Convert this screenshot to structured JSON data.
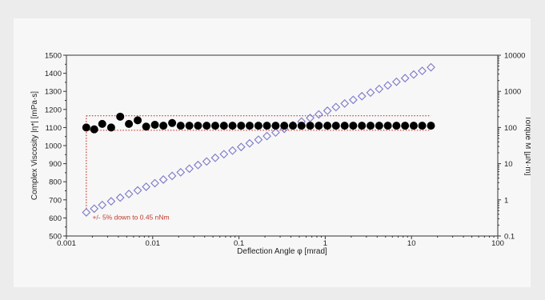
{
  "chart_data": {
    "type": "scatter",
    "title": "",
    "xlabel": "Deflection Angle φ [mrad]",
    "ylabel": "Complex Viscosity |η*| [mPa·s]",
    "y2label": "Torque M [µN·m]",
    "x_scale": "log",
    "xlim": [
      0.001,
      100
    ],
    "ylim": [
      500,
      1500
    ],
    "y2_scale": "log",
    "y2lim": [
      0.1,
      10000
    ],
    "grid": false,
    "legend": "none",
    "x_tick_labels": [
      "0.001",
      "0.01",
      "0.1",
      "1",
      "10",
      "100"
    ],
    "x_tick_values": [
      0.001,
      0.01,
      0.1,
      1,
      10,
      100
    ],
    "y_tick_labels": [
      "500",
      "600",
      "700",
      "800",
      "900",
      "1000",
      "1100",
      "1200",
      "1300",
      "1400",
      "1500"
    ],
    "y_tick_values": [
      500,
      600,
      700,
      800,
      900,
      1000,
      1100,
      1200,
      1300,
      1400,
      1500
    ],
    "y2_tick_labels": [
      "0.1",
      "1",
      "10",
      "100",
      "1000",
      "10000"
    ],
    "y2_tick_values": [
      0.1,
      1,
      10,
      100,
      1000,
      10000
    ],
    "series": [
      {
        "axis": "left",
        "marker": "filled-circle",
        "color": "#000000",
        "x": [
          0.0017,
          0.0021,
          0.0026,
          0.0033,
          0.0042,
          0.0053,
          0.0067,
          0.0084,
          0.0106,
          0.0133,
          0.0168,
          0.0211,
          0.0266,
          0.0335,
          0.0422,
          0.0531,
          0.0669,
          0.0842,
          0.106,
          0.133,
          0.168,
          0.211,
          0.266,
          0.335,
          0.422,
          0.531,
          0.669,
          0.842,
          1.06,
          1.33,
          1.68,
          2.11,
          2.66,
          3.35,
          4.22,
          5.31,
          6.69,
          8.42,
          10.6,
          13.3,
          16.8
        ],
        "y": [
          1100,
          1090,
          1120,
          1100,
          1160,
          1120,
          1140,
          1105,
          1115,
          1110,
          1125,
          1110,
          1110,
          1110,
          1110,
          1110,
          1110,
          1110,
          1110,
          1110,
          1110,
          1110,
          1110,
          1110,
          1110,
          1110,
          1110,
          1110,
          1110,
          1110,
          1110,
          1110,
          1110,
          1110,
          1110,
          1110,
          1110,
          1110,
          1110,
          1110,
          1110
        ]
      },
      {
        "axis": "right",
        "marker": "open-diamond",
        "color": "#7a78c8",
        "x": [
          0.0017,
          0.0021,
          0.0026,
          0.0033,
          0.0042,
          0.0053,
          0.0067,
          0.0084,
          0.0106,
          0.0133,
          0.0168,
          0.0211,
          0.0266,
          0.0335,
          0.0422,
          0.0531,
          0.0669,
          0.0842,
          0.106,
          0.133,
          0.168,
          0.211,
          0.266,
          0.335,
          0.422,
          0.531,
          0.669,
          0.842,
          1.06,
          1.33,
          1.68,
          2.11,
          2.66,
          3.35,
          4.22,
          5.31,
          6.69,
          8.42,
          10.6,
          13.3,
          16.8
        ],
        "y": [
          0.45,
          0.57,
          0.72,
          0.91,
          1.15,
          1.45,
          1.82,
          2.3,
          2.89,
          3.64,
          4.59,
          5.78,
          7.28,
          9.17,
          11.5,
          14.5,
          18.3,
          23.0,
          29.0,
          36.5,
          46.0,
          57.9,
          72.9,
          91.8,
          116,
          146,
          184,
          231,
          291,
          367,
          462,
          582,
          733,
          923,
          1162,
          1463,
          1842,
          2319,
          2920,
          3676,
          4628
        ]
      }
    ],
    "reference_lines": {
      "color": "#c0392b",
      "style": "dotted",
      "upper_y": 1165,
      "lower_y": 1085,
      "x_start": 0.0017,
      "x_end": 16.8,
      "vertical_at_x": 0.0017,
      "vertical_y_from": 650,
      "vertical_y_to": 1165
    },
    "annotations": [
      {
        "text": "+/- 5% down to 0.45 nNm",
        "x": 0.002,
        "y": 590
      }
    ]
  }
}
